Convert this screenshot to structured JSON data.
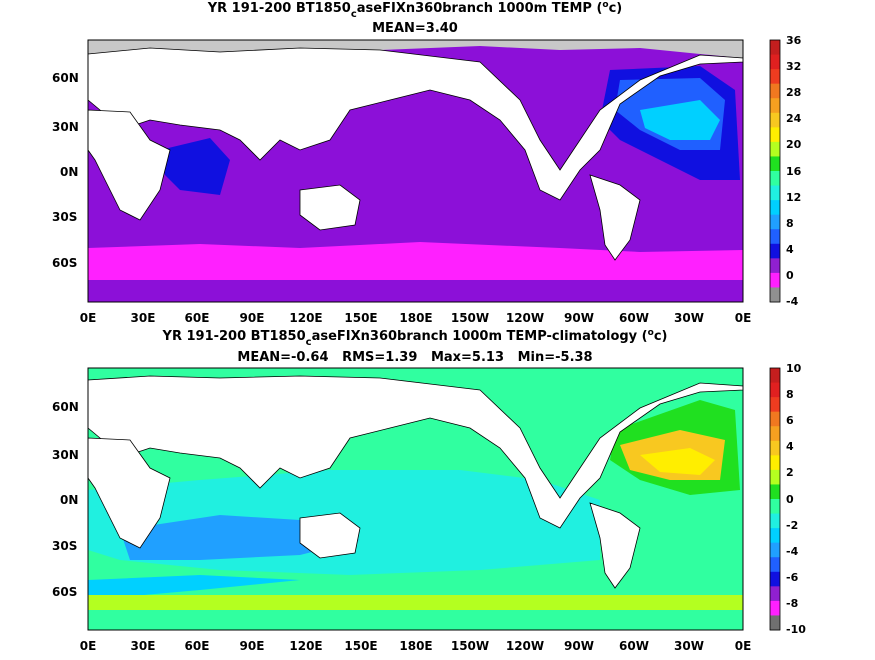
{
  "panels": [
    {
      "title_main": "YR 191-200 BT1850",
      "title_sub": "c",
      "title_rest": "aseFIXn360branch 1000m TEMP (",
      "title_deg": "o",
      "title_end": "c)",
      "stats": "MEAN=3.40",
      "y_ticks": [
        "60N",
        "30N",
        "0N",
        "30S",
        "60S"
      ],
      "x_ticks": [
        "0E",
        "30E",
        "60E",
        "90E",
        "120E",
        "150E",
        "180E",
        "150W",
        "120W",
        "90W",
        "60W",
        "30W",
        "0E"
      ],
      "colorbar": {
        "labels": [
          "36",
          "32",
          "28",
          "24",
          "20",
          "16",
          "12",
          "8",
          "4",
          "0",
          "-4"
        ],
        "colors": [
          "#c41e1e",
          "#e02020",
          "#ee3c20",
          "#f07820",
          "#f5a020",
          "#f8c820",
          "#ffee00",
          "#b4ff20",
          "#20e020",
          "#30ffa0",
          "#20f0e0",
          "#00d0ff",
          "#20a0ff",
          "#2060ff",
          "#1010e0",
          "#9020d0",
          "#ff20ff",
          "#909090"
        ]
      }
    },
    {
      "title_main": "YR 191-200 BT1850",
      "title_sub": "c",
      "title_rest": "aseFIXn360branch 1000m TEMP-climatology (",
      "title_deg": "o",
      "title_end": "c)",
      "stats": "MEAN=-0.64   RMS=1.39   Max=5.13   Min=-5.38",
      "y_ticks": [
        "60N",
        "30N",
        "0N",
        "30S",
        "60S"
      ],
      "x_ticks": [
        "0E",
        "30E",
        "60E",
        "90E",
        "120E",
        "150E",
        "180E",
        "150W",
        "120W",
        "90W",
        "60W",
        "30W",
        "0E"
      ],
      "colorbar": {
        "labels": [
          "10",
          "8",
          "6",
          "4",
          "2",
          "0",
          "-2",
          "-4",
          "-6",
          "-8",
          "-10"
        ],
        "colors": [
          "#c41e1e",
          "#e02020",
          "#ee3c20",
          "#f07820",
          "#f5a020",
          "#f8c820",
          "#ffee00",
          "#b4ff20",
          "#20e020",
          "#30ffa0",
          "#20f0e0",
          "#00d0ff",
          "#20a0ff",
          "#2060ff",
          "#1010e0",
          "#9020d0",
          "#ff20ff",
          "#707070"
        ]
      }
    }
  ]
}
